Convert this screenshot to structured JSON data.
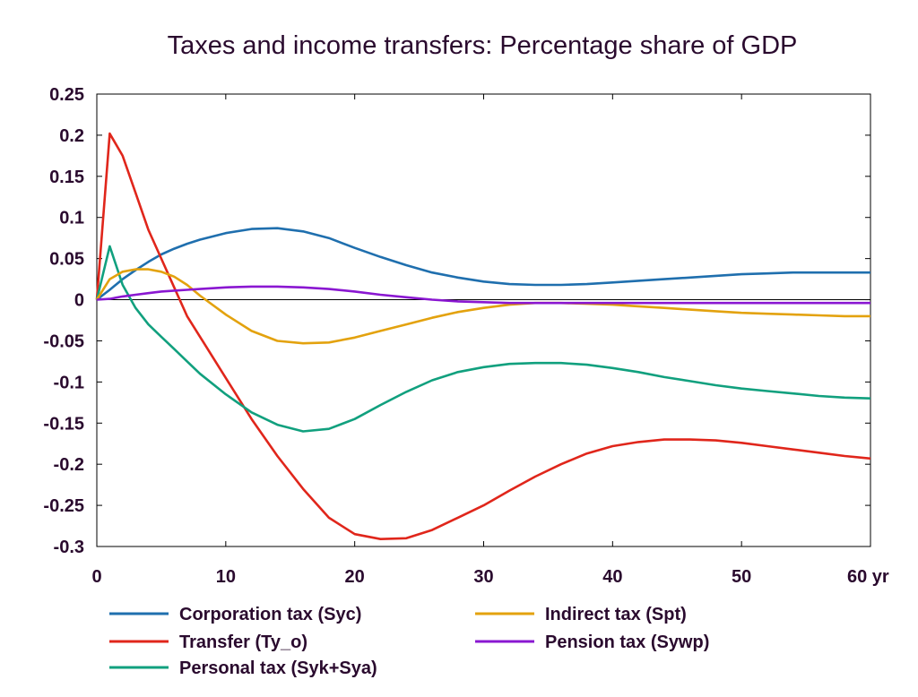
{
  "chart_data": {
    "type": "line",
    "title": "Taxes and income transfers: Percentage share of GDP",
    "xlabel": "",
    "ylabel": "",
    "x_unit_label": "yr",
    "xlim": [
      0,
      60
    ],
    "ylim": [
      -0.3,
      0.25
    ],
    "x_ticks": [
      0,
      10,
      20,
      30,
      40,
      50,
      60
    ],
    "x_tick_labels": [
      "0",
      "10",
      "20",
      "30",
      "40",
      "50",
      "60 yr"
    ],
    "y_ticks": [
      0.25,
      0.2,
      0.15,
      0.1,
      0.05,
      0,
      -0.05,
      -0.1,
      -0.15,
      -0.2,
      -0.25,
      -0.3
    ],
    "y_tick_labels": [
      "0.25",
      "0.2",
      "0.15",
      "0.1",
      "0.05",
      "0",
      "-0.05",
      "-0.1",
      "-0.15",
      "-0.2",
      "-0.25",
      "-0.3"
    ],
    "grid": false,
    "zero_line": true,
    "legend_position": "bottom",
    "x": [
      0,
      1,
      2,
      3,
      4,
      5,
      6,
      7,
      8,
      10,
      12,
      14,
      16,
      18,
      20,
      22,
      24,
      26,
      28,
      30,
      32,
      34,
      36,
      38,
      40,
      42,
      44,
      46,
      48,
      50,
      52,
      54,
      56,
      58,
      60
    ],
    "series": [
      {
        "name": "Corporation tax (Syc)",
        "color": "#1f6fae",
        "values": [
          0,
          0.012,
          0.025,
          0.036,
          0.046,
          0.055,
          0.062,
          0.068,
          0.073,
          0.081,
          0.086,
          0.087,
          0.083,
          0.075,
          0.063,
          0.052,
          0.042,
          0.033,
          0.027,
          0.022,
          0.019,
          0.018,
          0.018,
          0.019,
          0.021,
          0.023,
          0.025,
          0.027,
          0.029,
          0.031,
          0.032,
          0.033,
          0.033,
          0.033,
          0.033
        ]
      },
      {
        "name": "Transfer (Ty_o)",
        "color": "#e0261b",
        "values": [
          0,
          0.202,
          0.175,
          0.13,
          0.085,
          0.05,
          0.015,
          -0.02,
          -0.045,
          -0.095,
          -0.145,
          -0.19,
          -0.23,
          -0.265,
          -0.285,
          -0.291,
          -0.29,
          -0.28,
          -0.265,
          -0.25,
          -0.232,
          -0.215,
          -0.2,
          -0.187,
          -0.178,
          -0.173,
          -0.17,
          -0.17,
          -0.171,
          -0.174,
          -0.178,
          -0.182,
          -0.186,
          -0.19,
          -0.193
        ]
      },
      {
        "name": "Personal tax (Syk+Sya)",
        "color": "#11a07e",
        "values": [
          0,
          0.065,
          0.018,
          -0.01,
          -0.03,
          -0.045,
          -0.06,
          -0.075,
          -0.09,
          -0.115,
          -0.137,
          -0.152,
          -0.16,
          -0.157,
          -0.145,
          -0.128,
          -0.112,
          -0.098,
          -0.088,
          -0.082,
          -0.078,
          -0.077,
          -0.077,
          -0.079,
          -0.083,
          -0.088,
          -0.094,
          -0.099,
          -0.104,
          -0.108,
          -0.111,
          -0.114,
          -0.117,
          -0.119,
          -0.12
        ]
      },
      {
        "name": "Indirect tax (Spt)",
        "color": "#e3a20e",
        "values": [
          0,
          0.025,
          0.034,
          0.037,
          0.037,
          0.034,
          0.028,
          0.018,
          0.005,
          -0.018,
          -0.038,
          -0.05,
          -0.053,
          -0.052,
          -0.046,
          -0.038,
          -0.03,
          -0.022,
          -0.015,
          -0.01,
          -0.006,
          -0.004,
          -0.004,
          -0.005,
          -0.006,
          -0.008,
          -0.01,
          -0.012,
          -0.014,
          -0.016,
          -0.017,
          -0.018,
          -0.019,
          -0.02,
          -0.02
        ]
      },
      {
        "name": "Pension tax (Sywp)",
        "color": "#8a17d1",
        "values": [
          0,
          0.001,
          0.004,
          0.006,
          0.008,
          0.01,
          0.011,
          0.012,
          0.013,
          0.015,
          0.016,
          0.016,
          0.015,
          0.013,
          0.01,
          0.006,
          0.003,
          0,
          -0.002,
          -0.003,
          -0.004,
          -0.004,
          -0.004,
          -0.004,
          -0.004,
          -0.004,
          -0.004,
          -0.004,
          -0.004,
          -0.004,
          -0.004,
          -0.004,
          -0.004,
          -0.004,
          -0.004
        ]
      }
    ],
    "legend_layout": [
      {
        "series": 0,
        "column": 0,
        "row": 0
      },
      {
        "series": 1,
        "column": 0,
        "row": 1
      },
      {
        "series": 2,
        "column": 0,
        "row": 2
      },
      {
        "series": 3,
        "column": 1,
        "row": 0
      },
      {
        "series": 4,
        "column": 1,
        "row": 1
      }
    ]
  }
}
